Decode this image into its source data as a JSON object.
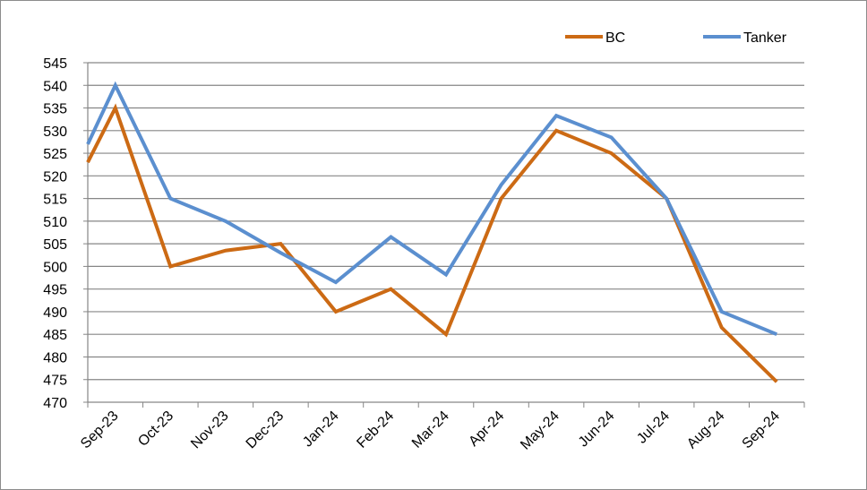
{
  "chart_data": {
    "type": "line",
    "title": "",
    "xlabel": "",
    "ylabel": "",
    "categories": [
      "Sep-23",
      "Oct-23",
      "Nov-23",
      "Dec-23",
      "Jan-24",
      "Feb-24",
      "Mar-24",
      "Apr-24",
      "May-24",
      "Jun-24",
      "Jul-24",
      "Aug-24",
      "Sep-24"
    ],
    "x": [
      0,
      0.5,
      1.5,
      2.5,
      3.5,
      4.5,
      5.5,
      6.5,
      7.5,
      8.5,
      9.5,
      10.5,
      11.5,
      12.5
    ],
    "series": [
      {
        "name": "BC",
        "color": "#cc6a14",
        "values": [
          523,
          535,
          500,
          503.5,
          505,
          490,
          495,
          485,
          515,
          530,
          525,
          515,
          486.5,
          474.5
        ]
      },
      {
        "name": "Tanker",
        "color": "#5b8fcf",
        "values": [
          527,
          540,
          515,
          510,
          503,
          496.5,
          506.5,
          498.2,
          518,
          533.3,
          528.5,
          515,
          490,
          485
        ]
      }
    ],
    "ylim": [
      470,
      545
    ],
    "yticks": [
      "470",
      "475",
      "480",
      "485",
      "490",
      "495",
      "500",
      "505",
      "510",
      "515",
      "520",
      "525",
      "530",
      "535",
      "540",
      "545"
    ],
    "grid": true,
    "legend_position": "top-right"
  }
}
